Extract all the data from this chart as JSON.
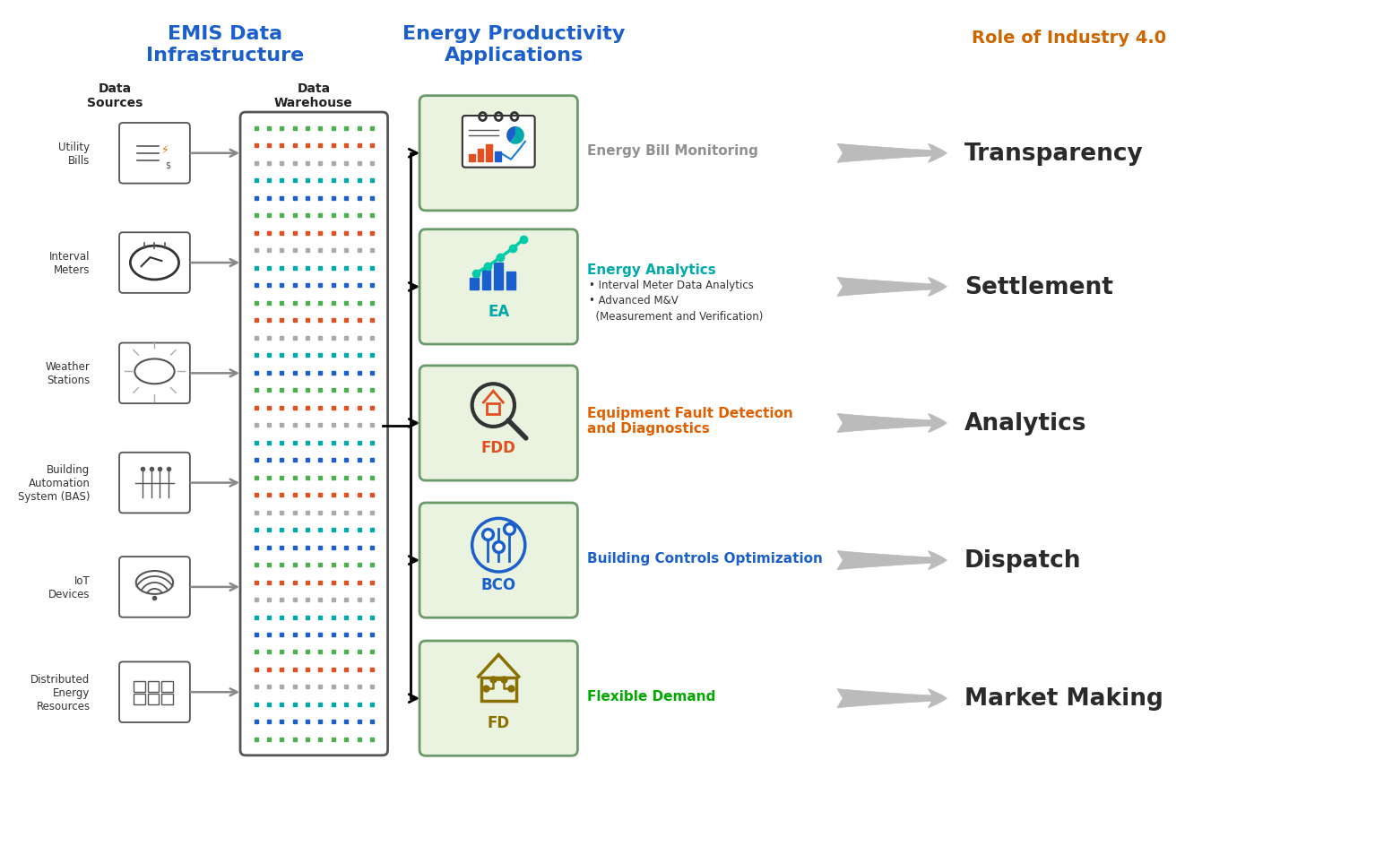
{
  "title_left": "EMIS Data\nInfrastructure",
  "title_middle": "Energy Productivity\nApplications",
  "title_right": "Role of Industry 4.0",
  "subtitle_sources": "Data\nSources",
  "subtitle_warehouse": "Data\nWarehouse",
  "data_sources": [
    "Utility\nBills",
    "Interval\nMeters",
    "Weather\nStations",
    "Building\nAutomation\nSystem (BAS)",
    "IoT\nDevices",
    "Distributed\nEnergy\nResources"
  ],
  "app_abbrevs": [
    "",
    "EA",
    "FDD",
    "BCO",
    "FD"
  ],
  "app_labels": [
    "Energy Bill Monitoring",
    "Energy Analytics",
    "Equipment Fault Detection\nand Diagnostics",
    "Building Controls Optimization",
    "Flexible Demand"
  ],
  "app_sublabels": [
    "",
    "• Interval Meter Data Analytics\n• Advanced M&V\n  (Measurement and Verification)",
    "",
    "",
    ""
  ],
  "app_label_colors": [
    "#909090",
    "#00aaaa",
    "#e06000",
    "#1a5fcc",
    "#00aa00"
  ],
  "abbrev_colors": [
    "#888888",
    "#00aaaa",
    "#e05020",
    "#1a5fcc",
    "#8a7000"
  ],
  "role_labels": [
    "Transparency",
    "Settlement",
    "Analytics",
    "Dispatch",
    "Market Making"
  ],
  "bg_color": "#ffffff",
  "title_color_left": "#1a5fcc",
  "title_color_middle": "#1a5fcc",
  "title_color_right": "#cc6600",
  "warehouse_dot_colors": [
    "#4caf50",
    "#1a5fcc",
    "#00aaaa",
    "#aaaaaa",
    "#e05020"
  ],
  "box_fill": "#eaf2e0",
  "box_edge": "#6a9a6a"
}
